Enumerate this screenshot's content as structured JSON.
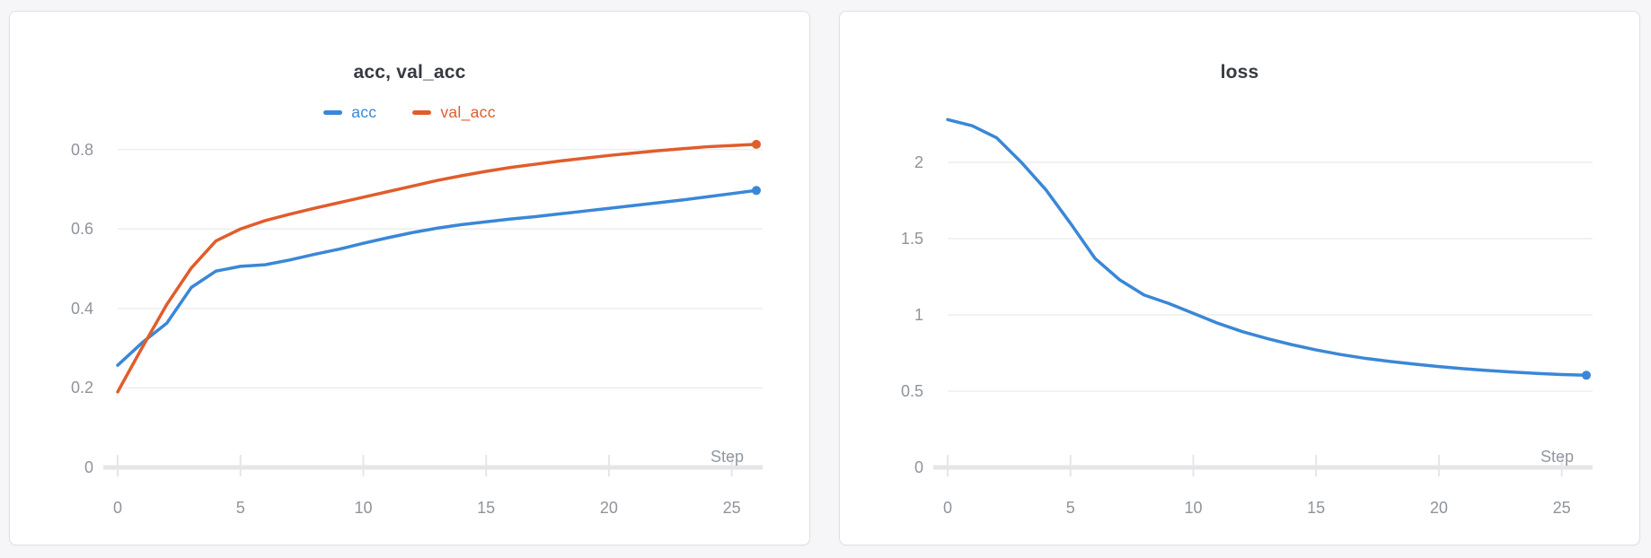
{
  "chart_data": [
    {
      "type": "line",
      "title": "acc, val_acc",
      "xlabel": "Step",
      "x": [
        0,
        1,
        2,
        3,
        4,
        5,
        6,
        7,
        8,
        9,
        10,
        11,
        12,
        13,
        14,
        15,
        16,
        17,
        18,
        19,
        20,
        21,
        22,
        23,
        24,
        25,
        26
      ],
      "series": [
        {
          "name": "acc",
          "color": "#3a87d7",
          "values": [
            0.257,
            0.314,
            0.363,
            0.453,
            0.494,
            0.506,
            0.51,
            0.522,
            0.536,
            0.549,
            0.564,
            0.578,
            0.591,
            0.602,
            0.611,
            0.618,
            0.625,
            0.631,
            0.638,
            0.645,
            0.652,
            0.659,
            0.666,
            0.673,
            0.681,
            0.689,
            0.697
          ]
        },
        {
          "name": "val_acc",
          "color": "#e05d2c",
          "values": [
            0.19,
            0.302,
            0.41,
            0.502,
            0.57,
            0.6,
            0.621,
            0.637,
            0.652,
            0.666,
            0.68,
            0.694,
            0.708,
            0.722,
            0.734,
            0.745,
            0.755,
            0.763,
            0.771,
            0.778,
            0.785,
            0.791,
            0.797,
            0.802,
            0.807,
            0.81,
            0.813
          ]
        }
      ],
      "xlim": [
        0,
        26
      ],
      "ylim": [
        0,
        0.876
      ],
      "xticks": [
        0,
        5,
        10,
        15,
        20,
        25
      ],
      "yticks": [
        0,
        0.2,
        0.4,
        0.6,
        0.8
      ],
      "grid": true,
      "legend_position": "top",
      "end_point_dot": true
    },
    {
      "type": "line",
      "title": "loss",
      "xlabel": "Step",
      "x": [
        0,
        1,
        2,
        3,
        4,
        5,
        6,
        7,
        8,
        9,
        10,
        11,
        12,
        13,
        14,
        15,
        16,
        17,
        18,
        19,
        20,
        21,
        22,
        23,
        24,
        25,
        26
      ],
      "series": [
        {
          "name": "loss",
          "color": "#3a87d7",
          "values": [
            2.28,
            2.24,
            2.16,
            2.0,
            1.82,
            1.6,
            1.37,
            1.23,
            1.13,
            1.075,
            1.01,
            0.945,
            0.89,
            0.845,
            0.805,
            0.77,
            0.74,
            0.715,
            0.695,
            0.677,
            0.661,
            0.647,
            0.635,
            0.625,
            0.616,
            0.609,
            0.604
          ]
        }
      ],
      "xlim": [
        0,
        26
      ],
      "ylim": [
        0,
        2.282
      ],
      "xticks": [
        0,
        5,
        10,
        15,
        20,
        25
      ],
      "yticks": [
        0,
        0.5,
        1,
        1.5,
        2
      ],
      "grid": true,
      "legend_position": "none",
      "end_point_dot": true
    }
  ]
}
